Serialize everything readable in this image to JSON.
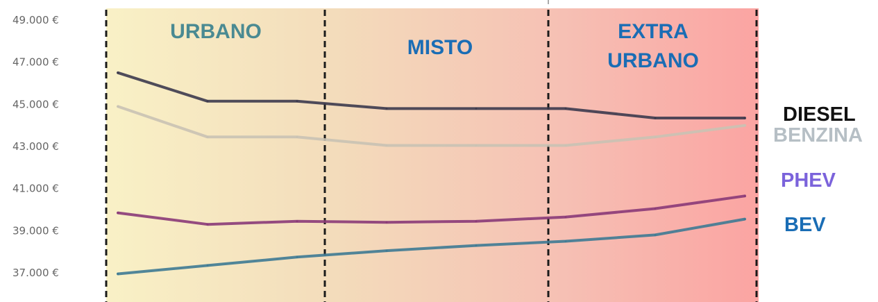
{
  "chart_data": {
    "type": "line",
    "x": [
      0,
      1,
      2,
      3,
      4,
      5,
      6,
      7
    ],
    "ylim": [
      36500,
      49500
    ],
    "yticks": [
      37000,
      39000,
      41000,
      43000,
      45000,
      47000,
      49000
    ],
    "ytick_labels": [
      "37.000 €",
      "39.000 €",
      "41.000 €",
      "43.000 €",
      "45.000 €",
      "47.000 €",
      "49.000 €"
    ],
    "zones": [
      {
        "label_lines": [
          "URBANO"
        ],
        "color": "#4a8a92"
      },
      {
        "label_lines": [
          "MISTO"
        ],
        "color": "#1a6db5"
      },
      {
        "label_lines": [
          "EXTRA",
          "URBANO"
        ],
        "color": "#1a6db5"
      }
    ],
    "series": [
      {
        "name": "DIESEL",
        "color": "#3c3a4e",
        "label_color": "#111111",
        "values": [
          46500,
          45150,
          45150,
          44800,
          44800,
          44800,
          44350,
          44350
        ]
      },
      {
        "name": "BENZINA",
        "color": "#c9c2b4",
        "label_color": "#b6bfc5",
        "values": [
          44900,
          43450,
          43450,
          43050,
          43050,
          43050,
          43450,
          44000
        ]
      },
      {
        "name": "PHEV",
        "color": "#8a3a78",
        "label_color": "#7b63db",
        "values": [
          39850,
          39300,
          39450,
          39400,
          39450,
          39650,
          40050,
          40650
        ]
      },
      {
        "name": "BEV",
        "color": "#3e7a93",
        "label_color": "#1a6db5",
        "values": [
          36950,
          37350,
          37750,
          38050,
          38300,
          38500,
          38800,
          39550
        ]
      }
    ]
  }
}
